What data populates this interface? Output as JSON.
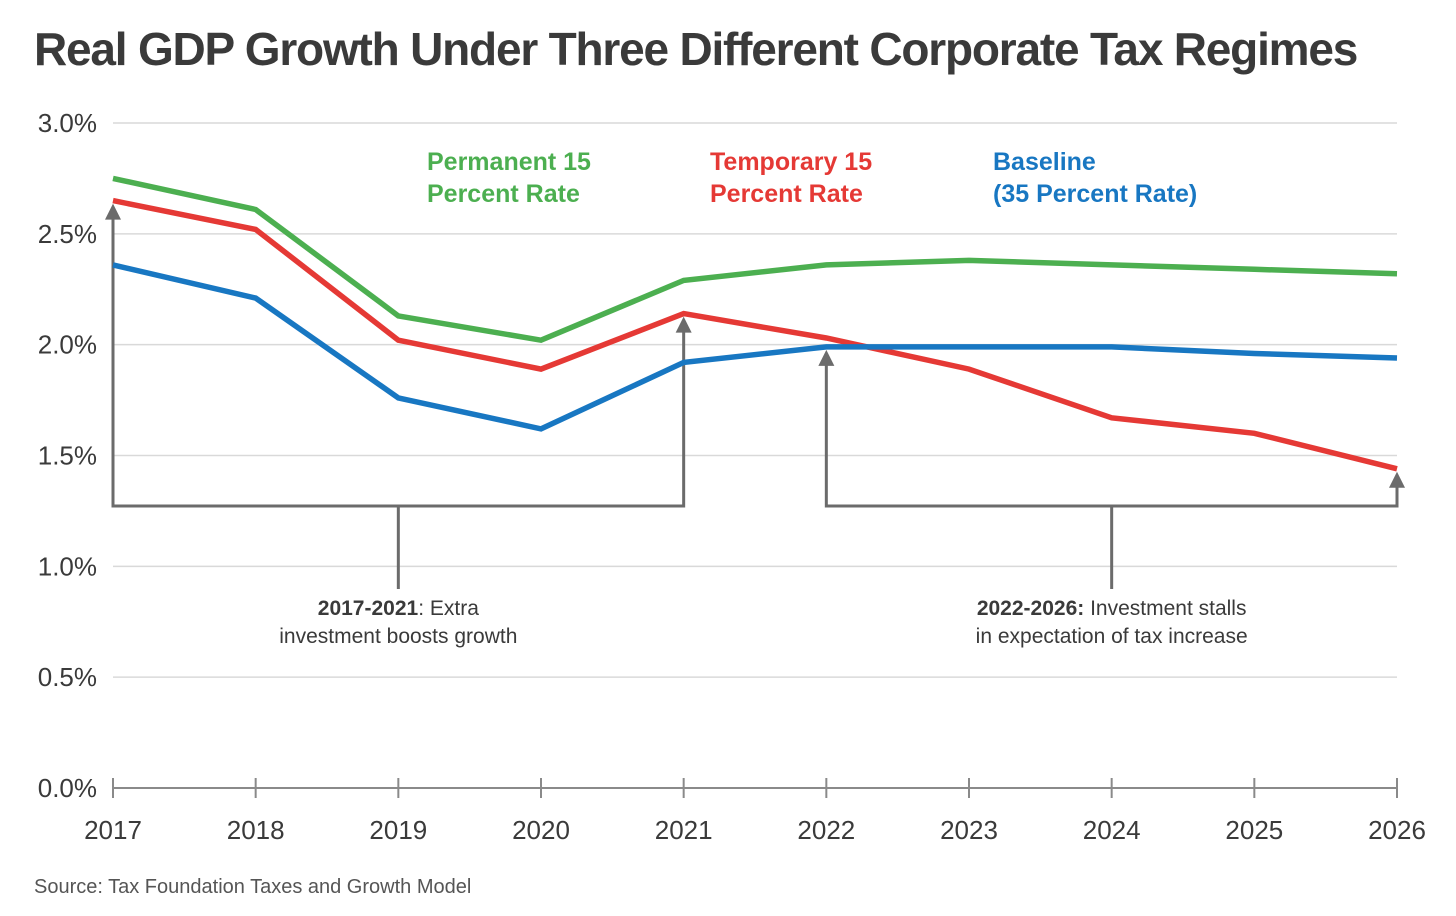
{
  "title": "Real GDP Growth Under Three Different Corporate Tax Regimes",
  "source": "Source: Tax Foundation Taxes and Growth Model",
  "colors": {
    "permanent": "#4caf50",
    "temporary": "#e53935",
    "baseline": "#1877c2",
    "grid": "#d9d9d9",
    "annotation": "#6b6b6b"
  },
  "chart_data": {
    "type": "line",
    "x": [
      2017,
      2018,
      2019,
      2020,
      2021,
      2022,
      2023,
      2024,
      2025,
      2026
    ],
    "x_tick_labels": [
      "2017",
      "2018",
      "2019",
      "2020",
      "2021",
      "2022",
      "2023",
      "2024",
      "2025",
      "2026"
    ],
    "y_tick_labels": [
      "0.0%",
      "0.5%",
      "1.0%",
      "1.5%",
      "2.0%",
      "2.5%",
      "3.0%"
    ],
    "y_ticks": [
      0,
      0.5,
      1.0,
      1.5,
      2.0,
      2.5,
      3.0
    ],
    "ylim": [
      0,
      3.0
    ],
    "grid": true,
    "series": [
      {
        "key": "permanent",
        "name_lines": [
          "Permanent 15",
          "Percent Rate"
        ],
        "color": "#4caf50",
        "values": [
          2.75,
          2.61,
          2.13,
          2.02,
          2.29,
          2.36,
          2.38,
          2.36,
          2.34,
          2.32
        ]
      },
      {
        "key": "temporary",
        "name_lines": [
          "Temporary 15",
          "Percent Rate"
        ],
        "color": "#e53935",
        "values": [
          2.65,
          2.52,
          2.02,
          1.89,
          2.14,
          2.03,
          1.89,
          1.67,
          1.6,
          1.44
        ]
      },
      {
        "key": "baseline",
        "name_lines": [
          "Baseline",
          "(35 Percent Rate)"
        ],
        "color": "#1877c2",
        "values": [
          2.36,
          2.21,
          1.76,
          1.62,
          1.92,
          1.99,
          1.99,
          1.99,
          1.96,
          1.94
        ]
      }
    ],
    "annotations": [
      {
        "bold": "2017-2021",
        "rest": ": Extra",
        "line2": "investment boosts growth",
        "from_x": 2017,
        "to_x": 2021,
        "from_y": 2.65,
        "to_y": 2.14
      },
      {
        "bold": "2022-2026:",
        "rest": " Investment stalls",
        "line2": "in expectation of tax increase",
        "from_x": 2022,
        "to_x": 2026,
        "from_y": 1.99,
        "to_y": 1.44
      }
    ]
  }
}
